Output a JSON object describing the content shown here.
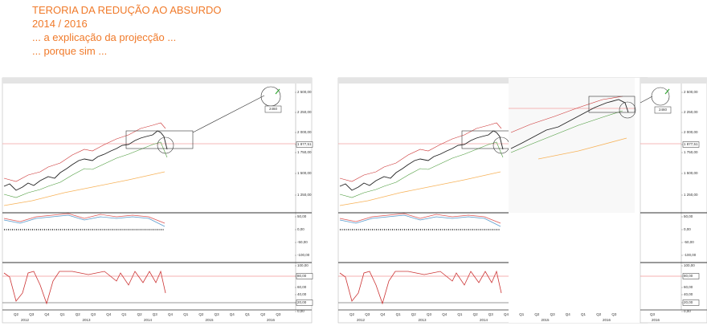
{
  "header": {
    "lines": [
      "TERORIA DA REDUÇÃO AO ABSURDO",
      "2014 / 2016",
      "... a explicação da projecção ...",
      "... porque sim ..."
    ]
  },
  "price_axis": [
    "2 500,00",
    "2 250,00",
    "2 000,00",
    "1 877,51",
    "1 750,00",
    "1 500,00",
    "1 250,00"
  ],
  "macd_axis": [
    "50,00",
    "0,00",
    "-50,00",
    "-100,00"
  ],
  "stoch_axis": [
    "100,00",
    "80,00",
    "60,00",
    "40,00",
    "20,00",
    "0,00"
  ],
  "quarters": [
    "Q2",
    "Q3",
    "Q4",
    "Q1",
    "Q2",
    "Q3",
    "Q4",
    "Q1",
    "Q2",
    "Q3",
    "Q4",
    "Q1",
    "Q2",
    "Q3",
    "Q4",
    "Q1",
    "Q2",
    "Q3"
  ],
  "years": [
    "2012",
    "2013",
    "2014",
    "2015",
    "2016"
  ],
  "annotation": "2460"
}
